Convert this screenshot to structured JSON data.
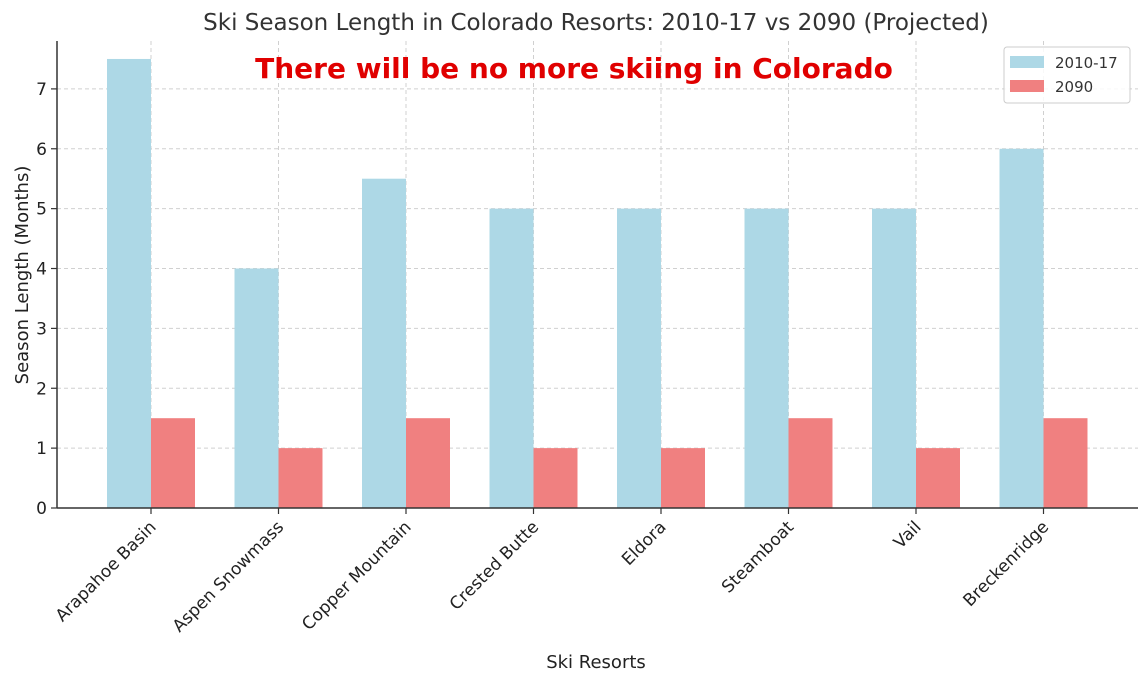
{
  "chart_data": {
    "type": "bar",
    "title": "Ski Season Length in Colorado Resorts: 2010-17 vs 2090 (Projected)",
    "annotation": "There will be no more skiing in Colorado",
    "xlabel": "Ski Resorts",
    "ylabel": "Season Length (Months)",
    "ylim": [
      0,
      7.8
    ],
    "yticks": [
      0,
      1,
      2,
      3,
      4,
      5,
      6,
      7
    ],
    "grid": true,
    "legend_position": "top-right",
    "categories": [
      "Arapahoe Basin",
      "Aspen Snowmass",
      "Copper Mountain",
      "Crested Butte",
      "Eldora",
      "Steamboat",
      "Vail",
      "Breckenridge"
    ],
    "series": [
      {
        "name": "2010-17",
        "color": "#add8e6",
        "values": [
          7.5,
          4,
          5.5,
          5,
          5,
          5,
          5,
          6
        ]
      },
      {
        "name": "2090",
        "color": "#f08080",
        "values": [
          1.5,
          1,
          1.5,
          1,
          1,
          1.5,
          1,
          1.5
        ]
      }
    ]
  }
}
